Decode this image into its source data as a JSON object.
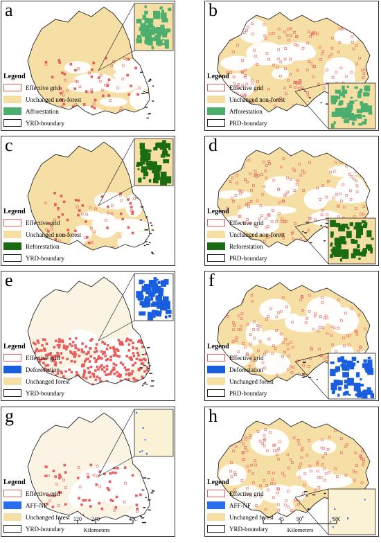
{
  "colors": {
    "grid": "#e85c5c",
    "nonforest": "#f6dfa5",
    "afforestation": "#4caf6e",
    "reforestation": "#1a6b12",
    "deforestation": "#1a5ee0",
    "aff_nf": "#2a6ef0",
    "boundary": "#222222"
  },
  "panels": [
    {
      "letter": "a",
      "legend_title": "Legend",
      "items": [
        {
          "label": "Effective grid",
          "swatch": "grid"
        },
        {
          "label": "Unchanged non-forest",
          "swatch": "nonforest"
        },
        {
          "label": "Afforestation",
          "swatch": "afforestation"
        },
        {
          "label": "YRD-boundary",
          "swatch": "boundary"
        }
      ]
    },
    {
      "letter": "b",
      "legend_title": "Legend",
      "items": [
        {
          "label": "Effective grid",
          "swatch": "grid"
        },
        {
          "label": "Unchanged non-forest",
          "swatch": "nonforest"
        },
        {
          "label": "Afforestation",
          "swatch": "afforestation"
        },
        {
          "label": "PRD-boundary",
          "swatch": "boundary"
        }
      ]
    },
    {
      "letter": "c",
      "legend_title": "Legend",
      "items": [
        {
          "label": "Effective grid",
          "swatch": "grid"
        },
        {
          "label": "Unchanged non-forest",
          "swatch": "nonforest"
        },
        {
          "label": "Reforestation",
          "swatch": "reforestation"
        },
        {
          "label": "YRD-boundary",
          "swatch": "boundary"
        }
      ]
    },
    {
      "letter": "d",
      "legend_title": "Legend",
      "items": [
        {
          "label": "Effective grid",
          "swatch": "grid"
        },
        {
          "label": "Unchanged non-forest",
          "swatch": "nonforest"
        },
        {
          "label": "Reforestation",
          "swatch": "reforestation"
        },
        {
          "label": "PRD-boundary",
          "swatch": "boundary"
        }
      ]
    },
    {
      "letter": "e",
      "legend_title": "Legend",
      "items": [
        {
          "label": "Effective grid",
          "swatch": "grid"
        },
        {
          "label": "Deforestation",
          "swatch": "deforestation"
        },
        {
          "label": "Unchanged forest",
          "swatch": "nonforest"
        },
        {
          "label": "YRD-boundary",
          "swatch": "boundary"
        }
      ]
    },
    {
      "letter": "f",
      "legend_title": "Legend",
      "items": [
        {
          "label": "Effective grid",
          "swatch": "grid"
        },
        {
          "label": "Deforestation",
          "swatch": "deforestation"
        },
        {
          "label": "Unchanged forest",
          "swatch": "nonforest"
        },
        {
          "label": "PRD-boundary",
          "swatch": "boundary"
        }
      ]
    },
    {
      "letter": "g",
      "legend_title": "Legend",
      "items": [
        {
          "label": "Effective grid",
          "swatch": "grid"
        },
        {
          "label": "AFF-NF",
          "swatch": "aff_nf"
        },
        {
          "label": "Unchanged forest",
          "swatch": "nonforest"
        },
        {
          "label": "YRD-boundary",
          "swatch": "boundary"
        }
      ],
      "scale": {
        "ticks": [
          "0",
          "120",
          "240",
          "480"
        ],
        "unit": "Kilometers"
      }
    },
    {
      "letter": "h",
      "legend_title": "Legend",
      "items": [
        {
          "label": "Effective grid",
          "swatch": "grid"
        },
        {
          "label": "AFF-NF",
          "swatch": "aff_nf"
        },
        {
          "label": "Unchanged forest",
          "swatch": "nonforest"
        },
        {
          "label": "YRD-boundary",
          "swatch": "boundary"
        }
      ],
      "scale": {
        "ticks": [
          "0",
          "45",
          "90",
          "180"
        ],
        "unit": "Kilometers"
      }
    }
  ]
}
